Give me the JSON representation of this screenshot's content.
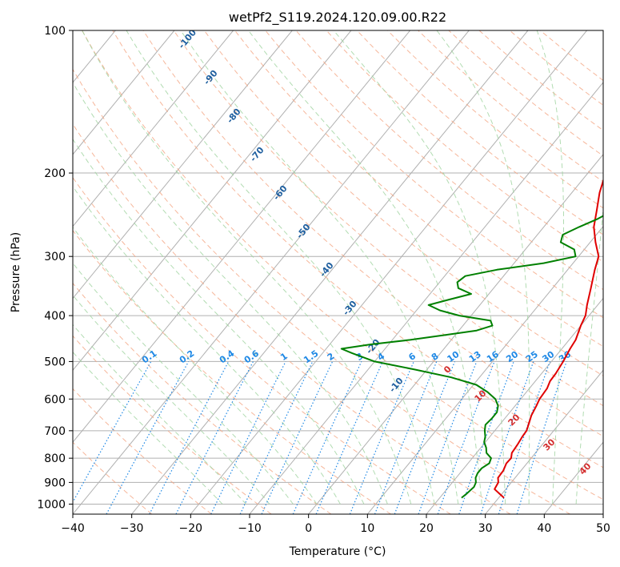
{
  "chart_data": {
    "type": "line",
    "title": "wetPf2_S119.2024.120.09.00.R22",
    "xlabel": "Temperature (°C)",
    "ylabel": "Pressure (hPa)",
    "xlim": [
      -40,
      50
    ],
    "ylim": [
      1050,
      100
    ],
    "y_scale": "log",
    "grid": true,
    "x_ticks": [
      -40,
      -30,
      -20,
      -10,
      0,
      10,
      20,
      30,
      40,
      50
    ],
    "y_ticks": [
      100,
      200,
      300,
      400,
      500,
      600,
      700,
      800,
      900,
      1000
    ],
    "series": [
      {
        "color": "#e00000",
        "pressure": [
          970,
          950,
          930,
          900,
          880,
          850,
          820,
          800,
          780,
          750,
          720,
          700,
          680,
          650,
          620,
          600,
          570,
          550,
          530,
          500,
          470,
          450,
          420,
          400,
          380,
          350,
          320,
          300,
          280,
          260,
          240,
          220,
          200,
          190,
          180,
          170,
          160,
          150,
          140,
          130,
          120,
          115,
          110,
          105,
          100
        ],
        "values": [
          30.9,
          29.5,
          28.1,
          27.8,
          27.1,
          27.0,
          26.5,
          26.6,
          26.0,
          25.8,
          25.5,
          25.4,
          24.9,
          24.1,
          23.6,
          23.2,
          23.0,
          22.5,
          22.4,
          22.0,
          21.4,
          21.1,
          20.0,
          19.4,
          18.2,
          16.5,
          14.6,
          13.4,
          10.9,
          8.5,
          6.7,
          4.7,
          3.0,
          1.7,
          0.4,
          -0.5,
          -1.3,
          -2.2,
          -3.0,
          -3.3,
          -3.7,
          -3.9,
          -3.6,
          -2.9,
          -1.6
        ]
      },
      {
        "color": "#008000",
        "pressure": [
          970,
          950,
          920,
          900,
          880,
          860,
          840,
          820,
          800,
          780,
          760,
          740,
          720,
          700,
          680,
          660,
          640,
          620,
          600,
          580,
          560,
          540,
          520,
          500,
          480,
          470,
          460,
          450,
          440,
          430,
          420,
          410,
          400,
          390,
          380,
          370,
          360,
          350,
          340,
          330,
          320,
          310,
          300,
          290,
          280,
          270,
          260,
          250,
          240,
          230,
          220,
          210,
          200,
          190,
          180,
          170,
          160,
          150,
          140,
          135,
          130,
          125,
          120,
          115,
          110,
          105,
          100
        ],
        "values": [
          23.7,
          24.0,
          24.3,
          24.0,
          23.3,
          23.0,
          23.0,
          23.6,
          23.2,
          21.7,
          20.9,
          19.8,
          19.2,
          18.3,
          17.6,
          17.8,
          17.8,
          17.1,
          15.7,
          13.4,
          10.5,
          5.2,
          -2.0,
          -10.0,
          -15.0,
          -17.4,
          -13.0,
          -7.0,
          -2.0,
          3.0,
          5.0,
          4.0,
          -2.0,
          -6.0,
          -8.7,
          -6.0,
          -3.0,
          -6.0,
          -7.0,
          -6.5,
          -2.0,
          5.0,
          9.5,
          8.3,
          5.0,
          4.3,
          6.0,
          8.0,
          9.5,
          9.3,
          7.3,
          5.5,
          3.9,
          1.9,
          0.0,
          -1.5,
          -2.7,
          -4.2,
          -5.5,
          -5.5,
          -5.2,
          -4.7,
          -5.6,
          -5.6,
          -5.7,
          -5.7,
          -5.0
        ]
      }
    ],
    "mixing_ratio_labels": [
      "0.1",
      "0.2",
      "0.4",
      "0.6",
      "1",
      "1.5",
      "2",
      "3",
      "4",
      "6",
      "8",
      "10",
      "13",
      "16",
      "20",
      "25",
      "30",
      "36"
    ],
    "dry_adiabat_labels": [
      "-100",
      "-90",
      "-80",
      "-70",
      "-60",
      "-50",
      "-40",
      "-30",
      "-20",
      "-10"
    ],
    "moist_adiabat_labels": [
      "0",
      "10",
      "20",
      "30",
      "40"
    ],
    "colors": {
      "temperature": "#e00000",
      "dewpoint": "#008000",
      "dry_adiabat": "#f4a582",
      "moist_adiabat": "#9fd39f",
      "mixing_ratio": "#1e88e5",
      "isotherm": "#b0b0b0",
      "dry_label": "#1f5f9f",
      "moist_label": "#d32f2f"
    }
  }
}
